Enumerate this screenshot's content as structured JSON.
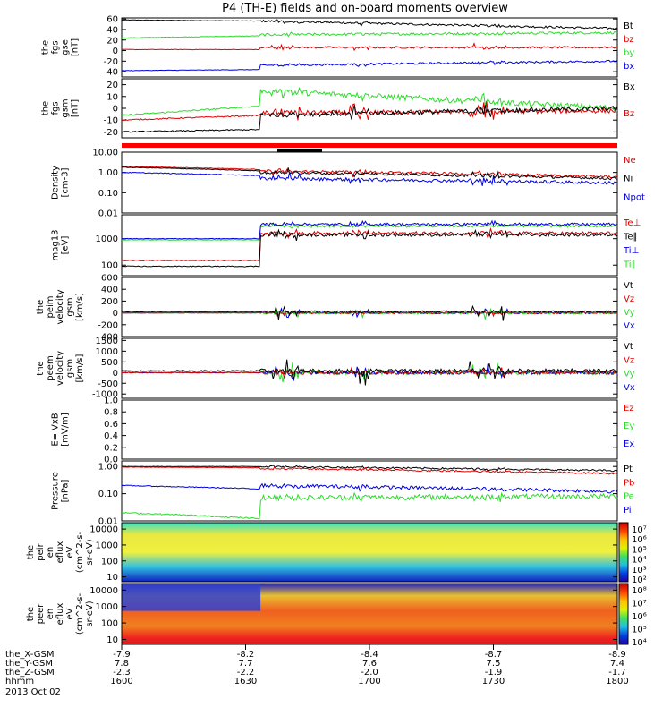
{
  "title": "P4 (TH-E) fields and on-board moments overview",
  "colors": {
    "black": "#000000",
    "red": "#e00000",
    "green": "#2bdc2b",
    "blue": "#0000e0"
  },
  "panels": [
    {
      "id": "fgs-gse",
      "ylabel": [
        "the",
        "fgs",
        "gse",
        "[nT]"
      ],
      "ticks": [
        "60",
        "40",
        "20",
        "0",
        "-20",
        "-40"
      ],
      "yrange": [
        -50,
        62
      ],
      "log": false,
      "legend": [
        {
          "t": "Bt",
          "c": "black"
        },
        {
          "t": "bz",
          "c": "red"
        },
        {
          "t": "by",
          "c": "green"
        },
        {
          "t": "bx",
          "c": "blue"
        }
      ]
    },
    {
      "id": "fgs-gsm",
      "ylabel": [
        "the",
        "fgs",
        "gsm",
        "[nT]"
      ],
      "ticks": [
        "20",
        "10",
        "0",
        "-10",
        "-20"
      ],
      "yrange": [
        -25,
        25
      ],
      "log": false,
      "legend": [
        {
          "t": "Bx",
          "c": "black"
        },
        {
          "t": "Bz",
          "c": "red"
        }
      ]
    },
    {
      "id": "density",
      "ylabel": [
        "Density",
        "[cm-3]"
      ],
      "ticks": [
        "10.00",
        "1.00",
        "0.10",
        "0.01"
      ],
      "yrange": [
        0.01,
        10
      ],
      "log": true,
      "legend": [
        {
          "t": "Ne",
          "c": "red"
        },
        {
          "t": "Ni",
          "c": "black"
        },
        {
          "t": "Npot",
          "c": "blue"
        }
      ]
    },
    {
      "id": "temp",
      "ylabel": [
        "mag13",
        "[eV]"
      ],
      "ticks": [
        "1000",
        "100"
      ],
      "yrange": [
        40,
        8000
      ],
      "log": true,
      "legend": [
        {
          "t": "Te⊥",
          "c": "red"
        },
        {
          "t": "Te∥",
          "c": "black"
        },
        {
          "t": "Ti⊥",
          "c": "blue"
        },
        {
          "t": "Ti∥",
          "c": "green"
        }
      ]
    },
    {
      "id": "peim-vel",
      "ylabel": [
        "the",
        "peim",
        "velocity",
        "gsm",
        "[km/s]"
      ],
      "ticks": [
        "600",
        "400",
        "200",
        "0",
        "-200",
        "-400"
      ],
      "yrange": [
        -400,
        600
      ],
      "log": false,
      "legend": [
        {
          "t": "Vt",
          "c": "black"
        },
        {
          "t": "Vz",
          "c": "red"
        },
        {
          "t": "Vy",
          "c": "green"
        },
        {
          "t": "Vx",
          "c": "blue"
        }
      ]
    },
    {
      "id": "peem-vel",
      "ylabel": [
        "the",
        "peem",
        "velocity",
        "gsm",
        "[km/s]"
      ],
      "ticks": [
        "1500",
        "1000",
        "500",
        "0",
        "-500",
        "-1000"
      ],
      "yrange": [
        -1200,
        1600
      ],
      "log": false,
      "legend": [
        {
          "t": "Vt",
          "c": "black"
        },
        {
          "t": "Vz",
          "c": "red"
        },
        {
          "t": "Vy",
          "c": "green"
        },
        {
          "t": "Vx",
          "c": "blue"
        }
      ]
    },
    {
      "id": "efield",
      "ylabel": [
        "E=-VxB",
        "[mV/m]"
      ],
      "ticks": [
        "1.0",
        "0.8",
        "0.6",
        "0.4",
        "0.2",
        "0.0"
      ],
      "yrange": [
        0,
        1
      ],
      "log": false,
      "legend": [
        {
          "t": "Ez",
          "c": "red"
        },
        {
          "t": "Ey",
          "c": "green"
        },
        {
          "t": "Ex",
          "c": "blue"
        }
      ]
    },
    {
      "id": "pressure",
      "ylabel": [
        "Pressure",
        "[nPa]"
      ],
      "ticks": [
        "1.00",
        "0.10",
        "0.01"
      ],
      "yrange": [
        0.01,
        1.6
      ],
      "log": true,
      "legend": [
        {
          "t": "Pt",
          "c": "black"
        },
        {
          "t": "Pb",
          "c": "red"
        },
        {
          "t": "Pe",
          "c": "green"
        },
        {
          "t": "Pi",
          "c": "blue"
        }
      ]
    },
    {
      "id": "peir-spec",
      "ylabel": [
        "the",
        "peir",
        "en",
        "eflux",
        "eV",
        "(cm^2-s-",
        "sr-eV)"
      ],
      "ticks": [
        "10000",
        "1000",
        "100",
        "10"
      ],
      "yrange": [
        5,
        25000
      ],
      "log": true,
      "legend": []
    },
    {
      "id": "peer-spec",
      "ylabel": [
        "the",
        "peer",
        "en",
        "eflux",
        "eV",
        "(cm^2-s-",
        "sr-eV)"
      ],
      "ticks": [
        "10000",
        "1000",
        "100",
        "10"
      ],
      "yrange": [
        5,
        25000
      ],
      "log": true,
      "legend": []
    }
  ],
  "colorbar_ion": [
    "10⁷",
    "10⁶",
    "10⁵",
    "10⁴",
    "10³",
    "10²"
  ],
  "colorbar_ele": [
    "10⁸",
    "10⁷",
    "10⁶",
    "10⁵",
    "10⁴"
  ],
  "footer": {
    "rows": [
      {
        "label": "the_X-GSM",
        "values": [
          "-7.9",
          "-8.2",
          "-8.4",
          "-8.7",
          "-8.9"
        ]
      },
      {
        "label": "the_Y-GSM",
        "values": [
          "7.8",
          "7.7",
          "7.6",
          "7.5",
          "7.4"
        ]
      },
      {
        "label": "the_Z-GSM",
        "values": [
          "-2.3",
          "-2.2",
          "-2.0",
          "-1.9",
          "-1.7"
        ]
      },
      {
        "label": "hhmm",
        "values": [
          "1600",
          "1630",
          "1700",
          "1730",
          "1800"
        ]
      }
    ],
    "date": "2013 Oct 02"
  },
  "chart_data": {
    "type": "line",
    "title": "P4 (TH-E) fields and on-board moments overview",
    "x": [
      "1600",
      "1630",
      "1700",
      "1730",
      "1800"
    ],
    "xlabel": "hhmm",
    "series": [
      {
        "name": "Bt",
        "panel": "fgs-gse",
        "values": [
          55,
          52,
          46,
          44,
          42
        ]
      },
      {
        "name": "bz",
        "panel": "fgs-gse",
        "values": [
          5,
          8,
          7,
          6,
          5
        ]
      },
      {
        "name": "by",
        "panel": "fgs-gse",
        "values": [
          20,
          30,
          33,
          34,
          35
        ]
      },
      {
        "name": "bx",
        "panel": "fgs-gse",
        "values": [
          -40,
          -30,
          -24,
          -22,
          -20
        ]
      },
      {
        "name": "Ne",
        "panel": "density",
        "values": [
          2.0,
          1.2,
          1.0,
          0.6,
          0.5
        ]
      },
      {
        "name": "Ni",
        "panel": "density",
        "values": [
          1.8,
          1.0,
          0.9,
          0.5,
          0.45
        ]
      },
      {
        "name": "Npot",
        "panel": "density",
        "values": [
          1.0,
          0.5,
          0.4,
          0.25,
          0.3
        ]
      },
      {
        "name": "Pt",
        "panel": "pressure",
        "values": [
          1.0,
          1.0,
          0.8,
          0.7,
          0.6
        ]
      },
      {
        "name": "Pb",
        "panel": "pressure",
        "values": [
          0.95,
          0.85,
          0.7,
          0.6,
          0.55
        ]
      },
      {
        "name": "Pe",
        "panel": "pressure",
        "values": [
          0.03,
          0.08,
          0.08,
          0.06,
          0.1
        ]
      },
      {
        "name": "Pi",
        "panel": "pressure",
        "values": [
          0.2,
          0.15,
          0.14,
          0.1,
          0.12
        ]
      }
    ]
  }
}
